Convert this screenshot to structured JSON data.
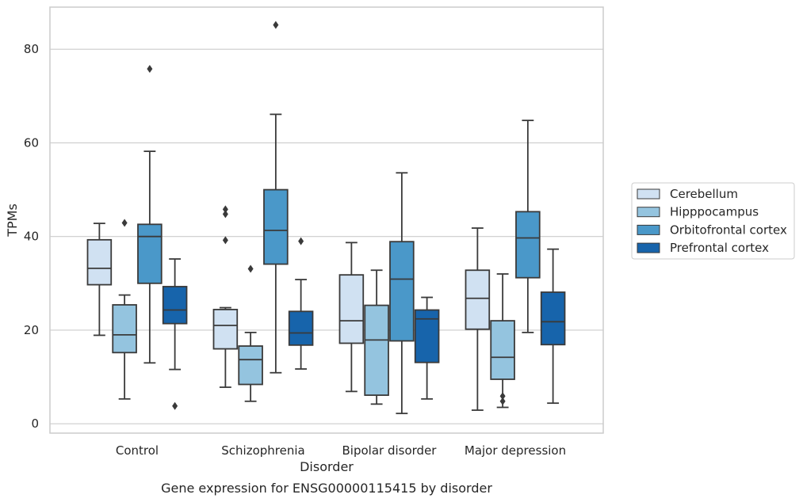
{
  "caption": "Gene expression for ENSG00000115415 by disorder",
  "chart_data": {
    "type": "box",
    "xlabel": "Disorder",
    "ylabel": "TPMs",
    "ylim": [
      -2,
      89
    ],
    "yticks": [
      0,
      20,
      40,
      60,
      80
    ],
    "grid": true,
    "legend_position": "right",
    "categories": [
      "Control",
      "Schizophrenia",
      "Bipolar disorder",
      "Major depression"
    ],
    "series": [
      {
        "name": "Cerebellum",
        "color": "#d0e1f2",
        "boxes": [
          {
            "whisker_low": 18.9,
            "q1": 29.7,
            "median": 33.2,
            "q3": 39.3,
            "whisker_high": 42.8,
            "outliers": []
          },
          {
            "whisker_low": 7.8,
            "q1": 16.0,
            "median": 21.0,
            "q3": 24.4,
            "whisker_high": 24.8,
            "outliers": [
              39.2,
              44.8,
              45.8
            ]
          },
          {
            "whisker_low": 6.9,
            "q1": 17.2,
            "median": 22.0,
            "q3": 31.8,
            "whisker_high": 38.7,
            "outliers": []
          },
          {
            "whisker_low": 2.9,
            "q1": 20.2,
            "median": 26.8,
            "q3": 32.8,
            "whisker_high": 41.8,
            "outliers": []
          }
        ]
      },
      {
        "name": "Hipppocampus",
        "color": "#94c4df",
        "boxes": [
          {
            "whisker_low": 5.3,
            "q1": 15.2,
            "median": 19.0,
            "q3": 25.4,
            "whisker_high": 27.5,
            "outliers": [
              42.9
            ]
          },
          {
            "whisker_low": 4.8,
            "q1": 8.4,
            "median": 13.7,
            "q3": 16.6,
            "whisker_high": 19.5,
            "outliers": [
              33.1
            ]
          },
          {
            "whisker_low": 4.2,
            "q1": 6.1,
            "median": 17.9,
            "q3": 25.3,
            "whisker_high": 32.8,
            "outliers": []
          },
          {
            "whisker_low": 3.5,
            "q1": 9.5,
            "median": 14.2,
            "q3": 22.0,
            "whisker_high": 32.0,
            "outliers": [
              4.8,
              5.9
            ]
          }
        ]
      },
      {
        "name": "Orbitofrontal cortex",
        "color": "#4a98c9",
        "boxes": [
          {
            "whisker_low": 13.0,
            "q1": 30.0,
            "median": 40.0,
            "q3": 42.6,
            "whisker_high": 58.2,
            "outliers": [
              75.8
            ]
          },
          {
            "whisker_low": 10.9,
            "q1": 34.1,
            "median": 41.3,
            "q3": 50.0,
            "whisker_high": 66.1,
            "outliers": [
              85.2
            ]
          },
          {
            "whisker_low": 2.2,
            "q1": 17.7,
            "median": 30.9,
            "q3": 38.9,
            "whisker_high": 53.6,
            "outliers": []
          },
          {
            "whisker_low": 19.5,
            "q1": 31.2,
            "median": 39.7,
            "q3": 45.3,
            "whisker_high": 64.8,
            "outliers": []
          }
        ]
      },
      {
        "name": "Prefrontal cortex",
        "color": "#1764ab",
        "boxes": [
          {
            "whisker_low": 11.6,
            "q1": 21.4,
            "median": 24.3,
            "q3": 29.3,
            "whisker_high": 35.2,
            "outliers": [
              3.8
            ]
          },
          {
            "whisker_low": 11.7,
            "q1": 16.8,
            "median": 19.4,
            "q3": 24.0,
            "whisker_high": 30.8,
            "outliers": [
              39.0
            ]
          },
          {
            "whisker_low": 5.3,
            "q1": 13.1,
            "median": 22.4,
            "q3": 24.3,
            "whisker_high": 27.0,
            "outliers": []
          },
          {
            "whisker_low": 4.4,
            "q1": 16.9,
            "median": 21.8,
            "q3": 28.1,
            "whisker_high": 37.3,
            "outliers": []
          }
        ]
      }
    ]
  }
}
